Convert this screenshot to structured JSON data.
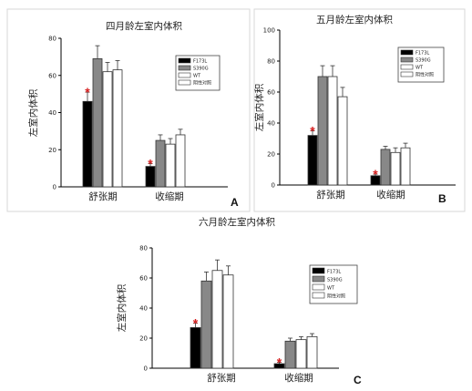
{
  "chart_data": [
    {
      "type": "bar",
      "panel": "A",
      "title": "四月龄左室内体积",
      "ylabel": "左室内体积",
      "xlabel": "",
      "categories": [
        "舒张期",
        "收缩期"
      ],
      "ylim": [
        0,
        80
      ],
      "yticks": [
        0,
        20,
        40,
        60,
        80
      ],
      "series": [
        {
          "name": "F173L",
          "values": [
            46,
            11
          ],
          "err": [
            5,
            1.5
          ],
          "color": "#000000"
        },
        {
          "name": "S390G",
          "values": [
            69,
            25
          ],
          "err": [
            7,
            3
          ],
          "color": "#888888"
        },
        {
          "name": "WT",
          "values": [
            62,
            23
          ],
          "err": [
            5,
            3
          ],
          "color": "#ffffff"
        },
        {
          "name": "阴性对照",
          "values": [
            63,
            28
          ],
          "err": [
            5,
            3
          ],
          "color": "#ffffff"
        }
      ],
      "annotations": [
        {
          "text": "*",
          "category": "舒张期",
          "series": "F173L"
        },
        {
          "text": "*",
          "category": "收缩期",
          "series": "F173L"
        }
      ]
    },
    {
      "type": "bar",
      "panel": "B",
      "title": "五月龄左室内体积",
      "ylabel": "左室内体积",
      "xlabel": "",
      "categories": [
        "舒张期",
        "收缩期"
      ],
      "ylim": [
        0,
        100
      ],
      "yticks": [
        0,
        20,
        40,
        60,
        80,
        100
      ],
      "series": [
        {
          "name": "F173L",
          "values": [
            32,
            6
          ],
          "err": [
            3,
            1
          ],
          "color": "#000000"
        },
        {
          "name": "S390G",
          "values": [
            70,
            23
          ],
          "err": [
            7,
            2
          ],
          "color": "#888888"
        },
        {
          "name": "WT",
          "values": [
            70,
            21
          ],
          "err": [
            7,
            3
          ],
          "color": "#ffffff"
        },
        {
          "name": "阴性对照",
          "values": [
            57,
            24
          ],
          "err": [
            6,
            3
          ],
          "color": "#ffffff"
        }
      ],
      "annotations": [
        {
          "text": "*",
          "category": "舒张期",
          "series": "F173L"
        },
        {
          "text": "*",
          "category": "收缩期",
          "series": "F173L"
        }
      ]
    },
    {
      "type": "bar",
      "panel": "C",
      "title": "六月龄左室内体积",
      "ylabel": "左室内体积",
      "xlabel": "",
      "categories": [
        "舒张期",
        "收缩期"
      ],
      "ylim": [
        0,
        80
      ],
      "yticks": [
        0,
        20,
        40,
        60,
        80
      ],
      "series": [
        {
          "name": "F173L",
          "values": [
            27,
            3
          ],
          "err": [
            3,
            1
          ],
          "color": "#000000"
        },
        {
          "name": "S390G",
          "values": [
            58,
            18
          ],
          "err": [
            6,
            2
          ],
          "color": "#888888"
        },
        {
          "name": "WT",
          "values": [
            65,
            19
          ],
          "err": [
            7,
            2
          ],
          "color": "#ffffff"
        },
        {
          "name": "阴性对照",
          "values": [
            62,
            21
          ],
          "err": [
            6,
            2
          ],
          "color": "#ffffff"
        }
      ],
      "annotations": [
        {
          "text": "*",
          "category": "舒张期",
          "series": "F173L"
        },
        {
          "text": "*",
          "category": "收缩期",
          "series": "F173L"
        }
      ]
    }
  ]
}
